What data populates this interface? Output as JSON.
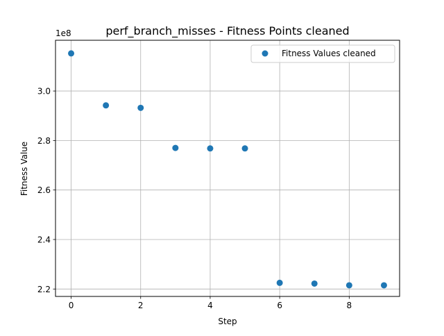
{
  "chart_data": {
    "type": "scatter",
    "title": "perf_branch_misses - Fitness Points cleaned",
    "xlabel": "Step",
    "ylabel": "Fitness Value",
    "y_offset_label": "1e8",
    "y_scale": 100000000,
    "xlim": [
      -0.45,
      9.45
    ],
    "ylim": [
      2.17,
      3.205
    ],
    "x_ticks": [
      0,
      2,
      4,
      6,
      8
    ],
    "x_tick_labels": [
      "0",
      "2",
      "4",
      "6",
      "8"
    ],
    "y_ticks": [
      2.2,
      2.4,
      2.6,
      2.8,
      3.0
    ],
    "y_tick_labels": [
      "2.2",
      "2.4",
      "2.6",
      "2.8",
      "3.0"
    ],
    "grid": true,
    "legend_position": "top-right",
    "series": [
      {
        "name": "Fitness Values cleaned",
        "color": "#1f77b4",
        "x": [
          0,
          1,
          2,
          3,
          4,
          5,
          6,
          7,
          8,
          9
        ],
        "y": [
          3.152,
          2.942,
          2.932,
          2.77,
          2.768,
          2.768,
          2.225,
          2.222,
          2.215,
          2.215
        ]
      }
    ]
  }
}
